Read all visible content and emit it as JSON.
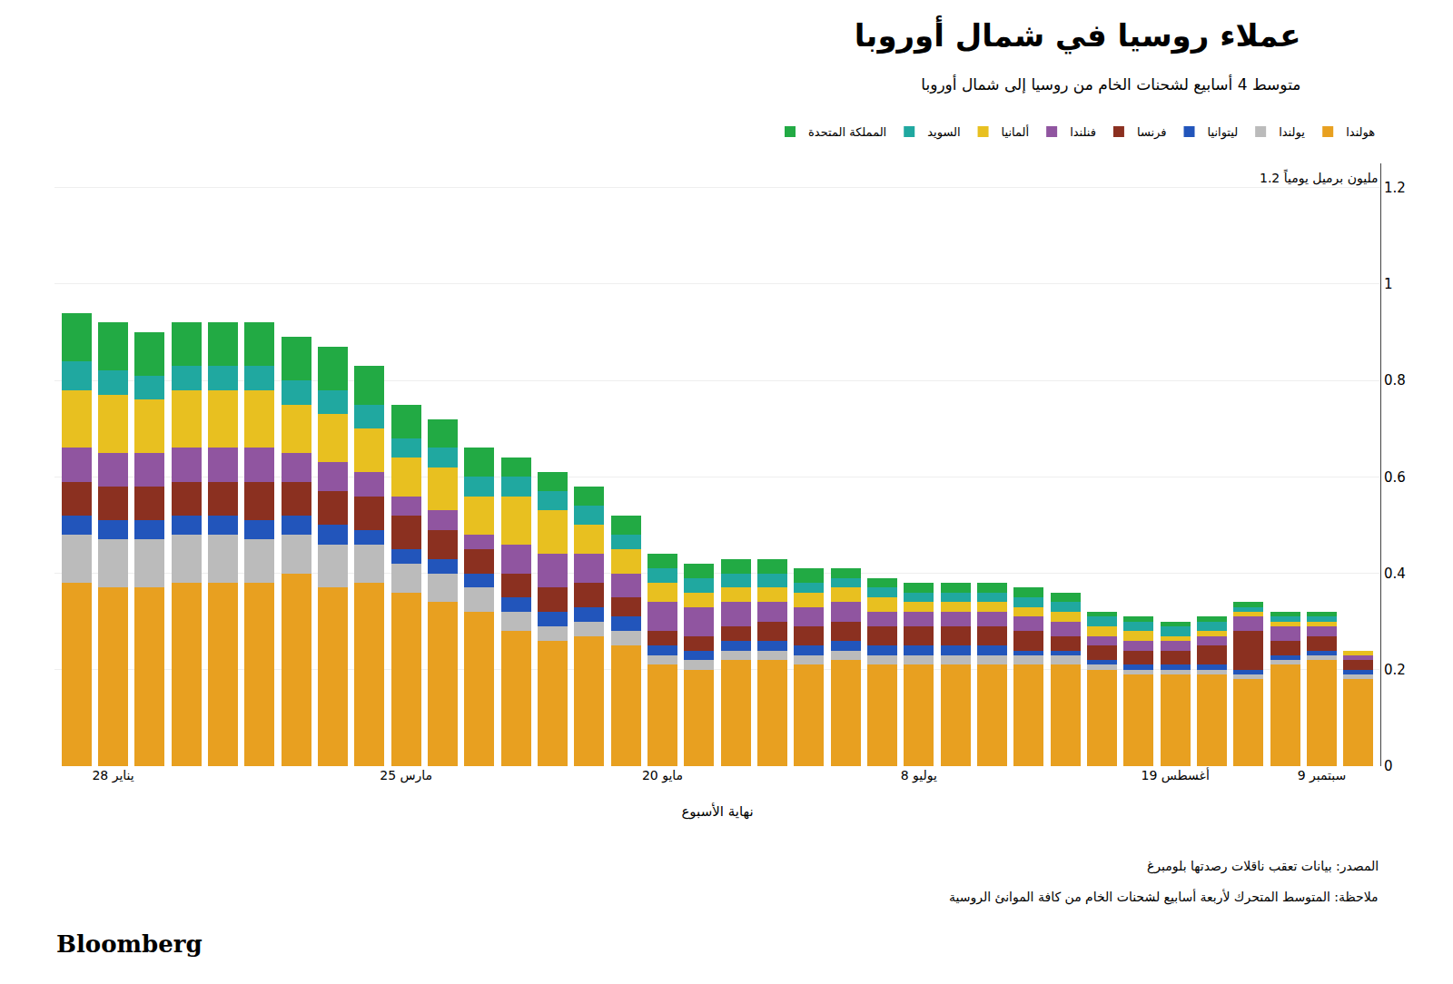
{
  "chart_data": {
    "type": "bar",
    "stacked": true,
    "grid": true,
    "legend": "top",
    "title": "عملاء روسيا في شمال أوروبا",
    "subtitle": "متوسط 4 أسابيع لشحنات الخام من روسيا إلى شمال أوروبا",
    "xlabel": "نهاية الأسبوع",
    "annotations": [
      "1.2 مليون برميل يومياً",
      "المصدر: بيانات تعقب ناقلات رصدتها بلومبرغ",
      "ملاحظة: المتوسط المتحرك لأربعة أسابيع لشحنات الخام من كافة الموانئ الروسية",
      "Bloomberg"
    ],
    "categories": [
      null,
      "28 يناير",
      null,
      null,
      null,
      null,
      null,
      null,
      null,
      "25 مارس",
      null,
      null,
      null,
      null,
      null,
      null,
      "20 مايو",
      null,
      null,
      null,
      null,
      null,
      null,
      "8 يوليو",
      null,
      null,
      null,
      null,
      null,
      null,
      "19 أغسطس",
      null,
      null,
      null,
      "9 سبتمبر",
      null
    ],
    "ylim": [
      0,
      1.25
    ],
    "yticks": [
      0,
      0.2,
      0.4,
      0.6,
      0.8,
      1,
      1.2
    ],
    "series": [
      {
        "name": "هولندا",
        "color": "#E8A020",
        "values": [
          0.38,
          0.37,
          0.37,
          0.38,
          0.38,
          0.38,
          0.4,
          0.37,
          0.38,
          0.36,
          0.34,
          0.32,
          0.28,
          0.26,
          0.27,
          0.25,
          0.21,
          0.2,
          0.22,
          0.22,
          0.21,
          0.22,
          0.21,
          0.21,
          0.21,
          0.21,
          0.21,
          0.21,
          0.2,
          0.19,
          0.19,
          0.19,
          0.18,
          0.21,
          0.22,
          0.18
        ]
      },
      {
        "name": "يولندا",
        "color": "#BBBBBB",
        "values": [
          0.1,
          0.1,
          0.1,
          0.1,
          0.1,
          0.09,
          0.08,
          0.09,
          0.08,
          0.06,
          0.06,
          0.05,
          0.04,
          0.03,
          0.03,
          0.03,
          0.02,
          0.02,
          0.02,
          0.02,
          0.02,
          0.02,
          0.02,
          0.02,
          0.02,
          0.02,
          0.02,
          0.02,
          0.01,
          0.01,
          0.01,
          0.01,
          0.01,
          0.01,
          0.01,
          0.01
        ]
      },
      {
        "name": "ليتوانيا",
        "color": "#2255BB",
        "values": [
          0.04,
          0.04,
          0.04,
          0.04,
          0.04,
          0.04,
          0.04,
          0.04,
          0.03,
          0.03,
          0.03,
          0.03,
          0.03,
          0.03,
          0.03,
          0.03,
          0.02,
          0.02,
          0.02,
          0.02,
          0.02,
          0.02,
          0.02,
          0.02,
          0.02,
          0.02,
          0.01,
          0.01,
          0.01,
          0.01,
          0.01,
          0.01,
          0.01,
          0.01,
          0.01,
          0.01
        ]
      },
      {
        "name": "فرنسا",
        "color": "#8B3020",
        "values": [
          0.07,
          0.07,
          0.07,
          0.07,
          0.07,
          0.08,
          0.07,
          0.07,
          0.07,
          0.07,
          0.06,
          0.05,
          0.05,
          0.05,
          0.05,
          0.04,
          0.03,
          0.03,
          0.03,
          0.04,
          0.04,
          0.04,
          0.04,
          0.04,
          0.04,
          0.04,
          0.04,
          0.03,
          0.03,
          0.03,
          0.03,
          0.04,
          0.08,
          0.03,
          0.03,
          0.02
        ]
      },
      {
        "name": "فنلندا",
        "color": "#9055A0",
        "values": [
          0.07,
          0.07,
          0.07,
          0.07,
          0.07,
          0.07,
          0.06,
          0.06,
          0.05,
          0.04,
          0.04,
          0.03,
          0.06,
          0.07,
          0.06,
          0.05,
          0.06,
          0.06,
          0.05,
          0.04,
          0.04,
          0.04,
          0.03,
          0.03,
          0.03,
          0.03,
          0.03,
          0.03,
          0.02,
          0.02,
          0.02,
          0.02,
          0.03,
          0.03,
          0.02,
          0.01
        ]
      },
      {
        "name": "ألمانيا",
        "color": "#E8C020",
        "values": [
          0.12,
          0.12,
          0.11,
          0.12,
          0.12,
          0.12,
          0.1,
          0.1,
          0.09,
          0.08,
          0.09,
          0.08,
          0.1,
          0.09,
          0.06,
          0.05,
          0.04,
          0.03,
          0.03,
          0.03,
          0.03,
          0.03,
          0.03,
          0.02,
          0.02,
          0.02,
          0.02,
          0.02,
          0.02,
          0.02,
          0.01,
          0.01,
          0.01,
          0.01,
          0.01,
          0.01
        ]
      },
      {
        "name": "السويد",
        "color": "#20A8A0",
        "values": [
          0.06,
          0.05,
          0.05,
          0.05,
          0.05,
          0.05,
          0.05,
          0.05,
          0.05,
          0.04,
          0.04,
          0.04,
          0.04,
          0.04,
          0.04,
          0.03,
          0.03,
          0.03,
          0.03,
          0.03,
          0.02,
          0.02,
          0.02,
          0.02,
          0.02,
          0.02,
          0.02,
          0.02,
          0.02,
          0.02,
          0.02,
          0.02,
          0.01,
          0.01,
          0.01,
          0.0
        ]
      },
      {
        "name": "المملكة المتحدة",
        "color": "#22AA44",
        "values": [
          0.1,
          0.1,
          0.09,
          0.09,
          0.09,
          0.09,
          0.09,
          0.09,
          0.08,
          0.07,
          0.06,
          0.06,
          0.04,
          0.04,
          0.04,
          0.04,
          0.03,
          0.03,
          0.03,
          0.03,
          0.03,
          0.02,
          0.02,
          0.02,
          0.02,
          0.02,
          0.02,
          0.02,
          0.01,
          0.01,
          0.01,
          0.01,
          0.01,
          0.01,
          0.01,
          0.0
        ]
      }
    ]
  }
}
